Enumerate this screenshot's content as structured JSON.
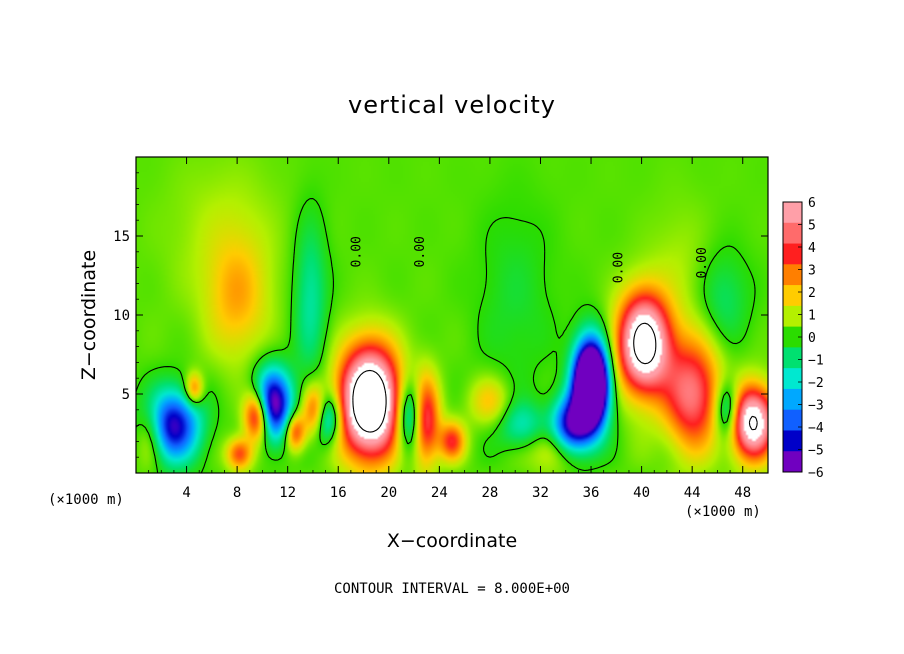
{
  "chart_data": {
    "type": "heatmap",
    "title": "vertical velocity",
    "xlabel": "X−coordinate",
    "ylabel": "Z−coordinate",
    "x_unit_left": "(×1000 m)",
    "x_unit_right": "(×1000 m)",
    "footer": "CONTOUR INTERVAL = 8.000E+00",
    "xlim": [
      0,
      50
    ],
    "ylim": [
      0,
      20
    ],
    "x_ticks": [
      4,
      8,
      12,
      16,
      20,
      24,
      28,
      32,
      36,
      40,
      44,
      48
    ],
    "y_ticks": [
      5,
      10,
      15
    ],
    "contour_labels": [
      "0.00",
      "0.00",
      "0.00",
      "0.00"
    ],
    "contour_label_x": [
      17.5,
      22.5,
      38.2,
      44.8
    ],
    "contour_label_z": [
      14.0,
      14.0,
      13.0,
      13.3
    ],
    "colorbar": {
      "levels": [
        6,
        5,
        4,
        3,
        2,
        1,
        0,
        -1,
        -2,
        -3,
        -4,
        -5,
        -6
      ],
      "labels": [
        "6",
        "5",
        "4",
        "3",
        "2",
        "1",
        "0",
        "−1",
        "−2",
        "−3",
        "−4",
        "−5",
        "−6"
      ],
      "colors": [
        "#ff9fa8",
        "#ff6b6b",
        "#ff1f1f",
        "#ff7f00",
        "#ffcc00",
        "#b4f000",
        "#2bdc00",
        "#00e070",
        "#00e8d0",
        "#00a8ff",
        "#1060ff",
        "#0000c8",
        "#7000c0"
      ]
    },
    "background_value": 0.3,
    "features": [
      {
        "x": 8,
        "z": 11,
        "w": 2.4,
        "s": 3.8,
        "a": 1.9
      },
      {
        "x": 7,
        "z": 15,
        "w": 4.5,
        "s": 5.0,
        "a": 0.7
      },
      {
        "x": 18.5,
        "z": 4.5,
        "w": 2.3,
        "s": 3.3,
        "a": 11.0
      },
      {
        "x": 40.2,
        "z": 8.2,
        "w": 2.0,
        "s": 3.0,
        "a": 9.0
      },
      {
        "x": 44.0,
        "z": 5.0,
        "w": 2.2,
        "s": 3.4,
        "a": 5.0
      },
      {
        "x": 48.8,
        "z": 3.2,
        "w": 1.7,
        "s": 2.2,
        "a": 8.0
      },
      {
        "x": 22.8,
        "z": 3.4,
        "w": 1.1,
        "s": 2.6,
        "a": 7.0
      },
      {
        "x": 9.6,
        "z": 3.6,
        "w": 1.0,
        "s": 1.6,
        "a": 6.0
      },
      {
        "x": 14.2,
        "z": 3.8,
        "w": 1.0,
        "s": 1.6,
        "a": 5.5
      },
      {
        "x": 36.0,
        "z": 5.6,
        "w": 1.3,
        "s": 2.6,
        "a": -14.0
      },
      {
        "x": 34.5,
        "z": 3.0,
        "w": 1.5,
        "s": 1.8,
        "a": -6.0
      },
      {
        "x": 10.8,
        "z": 4.3,
        "w": 1.5,
        "s": 2.2,
        "a": -7.0
      },
      {
        "x": 14.9,
        "z": 3.5,
        "w": 1.3,
        "s": 1.6,
        "a": -5.0
      },
      {
        "x": 22.0,
        "z": 3.6,
        "w": 1.3,
        "s": 2.3,
        "a": -5.5
      },
      {
        "x": 2.8,
        "z": 3.0,
        "w": 2.2,
        "s": 2.2,
        "a": -6.0
      },
      {
        "x": 13.8,
        "z": 11.0,
        "w": 1.3,
        "s": 5.0,
        "a": -1.8
      },
      {
        "x": 25.0,
        "z": 2.0,
        "w": 1.0,
        "s": 1.2,
        "a": 3.5
      },
      {
        "x": 12.6,
        "z": 2.6,
        "w": 0.8,
        "s": 1.2,
        "a": 3.8
      },
      {
        "x": 8.2,
        "z": 1.2,
        "w": 1.0,
        "s": 1.0,
        "a": 3.5
      },
      {
        "x": 1.2,
        "z": 2.5,
        "w": 1.2,
        "s": 2.0,
        "a": 2.5
      },
      {
        "x": 4.6,
        "z": 5.3,
        "w": 0.7,
        "s": 1.0,
        "a": 3.0
      },
      {
        "x": 30.5,
        "z": 3.0,
        "w": 1.8,
        "s": 1.5,
        "a": -2.0
      },
      {
        "x": 28.0,
        "z": 4.5,
        "w": 1.6,
        "s": 1.5,
        "a": 1.8
      },
      {
        "x": 46.8,
        "z": 4.0,
        "w": 1.0,
        "s": 1.8,
        "a": -3.5
      },
      {
        "x": 33.0,
        "z": 1.5,
        "w": 2.0,
        "s": 1.4,
        "a": 1.6
      },
      {
        "x": 43.0,
        "z": 13.0,
        "w": 2.5,
        "s": 4.0,
        "a": 0.6
      },
      {
        "x": 30.0,
        "z": 11.0,
        "w": 3.0,
        "s": 6.0,
        "a": -0.7
      },
      {
        "x": 46.5,
        "z": 11.0,
        "w": 2.0,
        "s": 3.0,
        "a": -1.2
      }
    ]
  }
}
